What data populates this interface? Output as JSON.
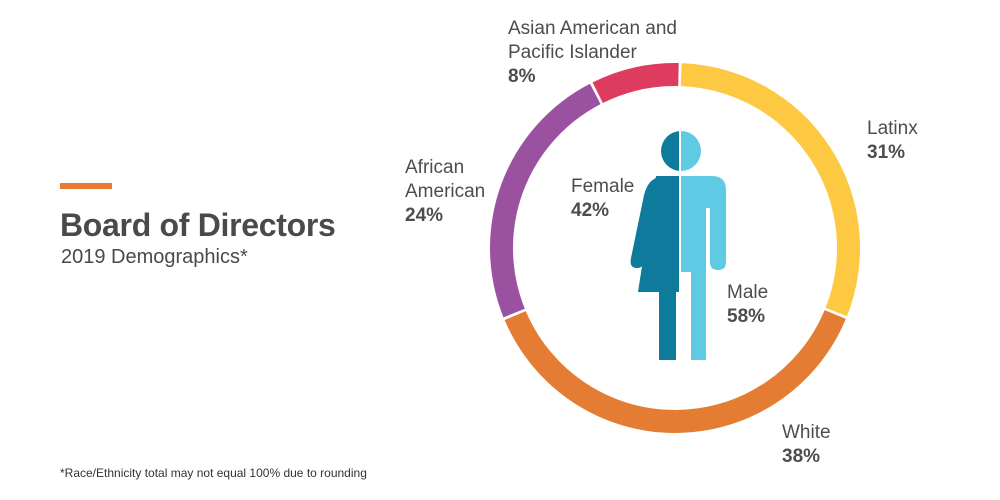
{
  "header": {
    "title": "Board of Directors",
    "subtitle": "2019 Demographics*"
  },
  "footnote": "*Race/Ethnicity total may not equal 100% due to rounding",
  "chart_data": [
    {
      "type": "pie",
      "variant": "donut",
      "subject": "Race/Ethnicity",
      "slices": [
        {
          "label_lines": [
            "Asian American and",
            "Pacific Islander"
          ],
          "value": 8,
          "value_label": "8%",
          "color": "#dd3c5e"
        },
        {
          "label_lines": [
            "Latinx"
          ],
          "value": 31,
          "value_label": "31%",
          "color": "#fdc943"
        },
        {
          "label_lines": [
            "White"
          ],
          "value": 38,
          "value_label": "38%",
          "color": "#e57c34"
        },
        {
          "label_lines": [
            "African",
            "American"
          ],
          "value": 24,
          "value_label": "24%",
          "color": "#9a52a0"
        }
      ]
    },
    {
      "type": "pie",
      "variant": "pictogram",
      "subject": "Gender",
      "slices": [
        {
          "label_lines": [
            "Female"
          ],
          "value": 42,
          "value_label": "42%",
          "color": "#0e7a9c"
        },
        {
          "label_lines": [
            "Male"
          ],
          "value": 58,
          "value_label": "58%",
          "color": "#5ecae3"
        }
      ]
    }
  ]
}
